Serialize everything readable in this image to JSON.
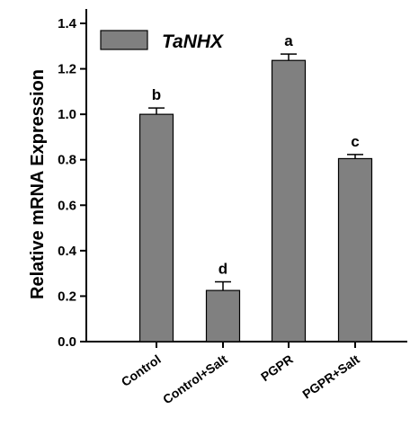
{
  "chart_data": {
    "type": "bar",
    "title": "",
    "xlabel": "",
    "ylabel": "Relative mRNA Expression",
    "ylim": [
      0,
      1.45
    ],
    "yticks": [
      "0.0",
      "0.2",
      "0.4",
      "0.6",
      "0.8",
      "1.0",
      "1.2",
      "1.4"
    ],
    "categories": [
      "Control",
      "Control+Salt",
      "PGPR",
      "PGPR+Salt"
    ],
    "series": [
      {
        "name": "TaNHX",
        "values": [
          1.0,
          0.225,
          1.237,
          0.805
        ],
        "errors": [
          0.028,
          0.038,
          0.028,
          0.018
        ],
        "significance": [
          "b",
          "d",
          "a",
          "c"
        ]
      }
    ],
    "bar_color": "#808080",
    "grid": false,
    "legend_position": "top-left"
  }
}
